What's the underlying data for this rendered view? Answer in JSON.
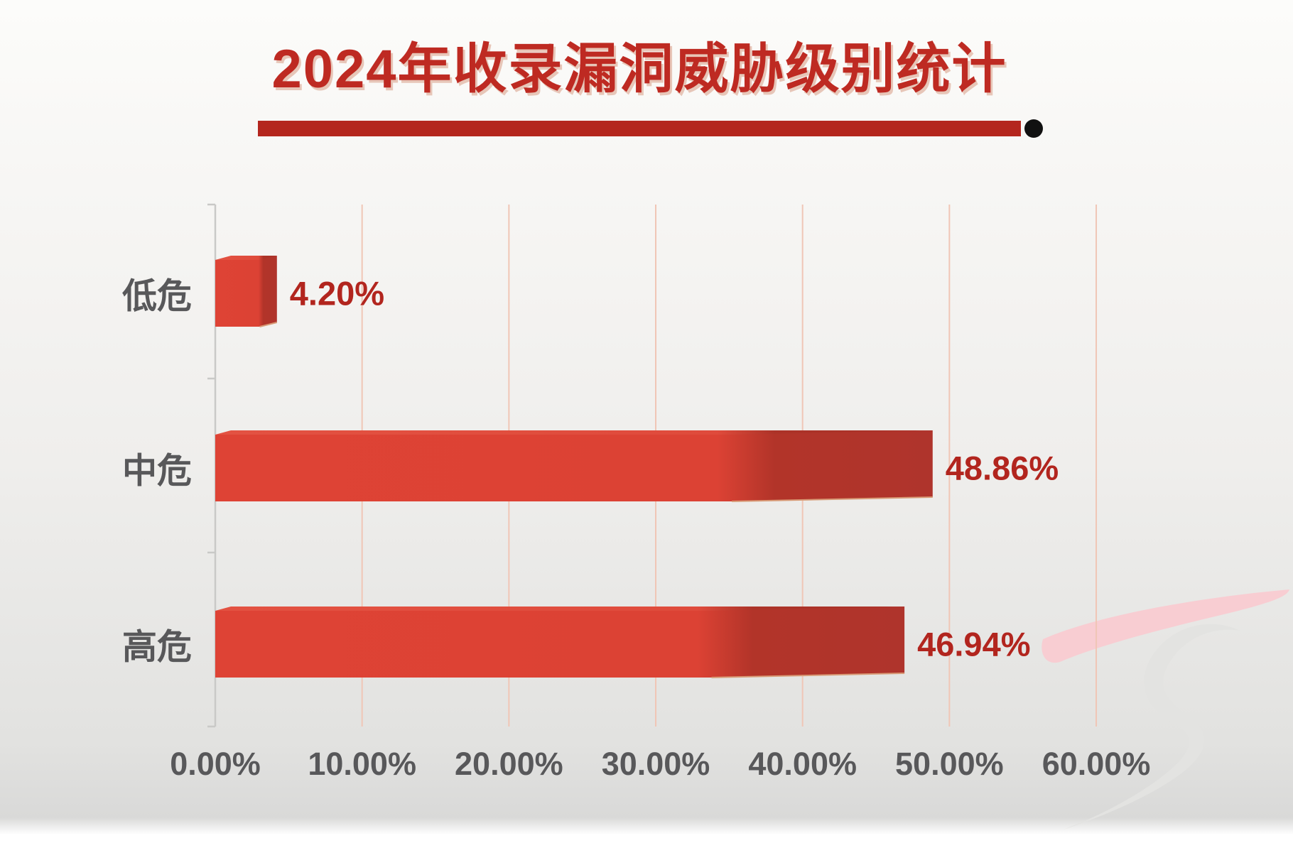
{
  "title": "2024年收录漏洞威胁级别统计",
  "chart_data": {
    "type": "bar",
    "orientation": "horizontal",
    "title": "2024年收录漏洞威胁级别统计",
    "categories": [
      "低危",
      "中危",
      "高危"
    ],
    "values": [
      4.2,
      48.86,
      46.94
    ],
    "value_labels": [
      "4.20%",
      "48.86%",
      "46.94%"
    ],
    "x_ticks": [
      "0.00%",
      "10.00%",
      "20.00%",
      "30.00%",
      "40.00%",
      "50.00%",
      "60.00%"
    ],
    "x_tick_values": [
      0,
      10,
      20,
      30,
      40,
      50,
      60
    ],
    "xlim": [
      0,
      60
    ],
    "xlabel": "",
    "ylabel": "",
    "grid": "vertical-gridlines",
    "legend": "none",
    "bar_style": "3d-red-blocks"
  },
  "colors": {
    "title_red": "#be2a22",
    "underline_red": "#b4261e",
    "value_label_red": "#b2251e",
    "bar_front": "#dc4336",
    "bar_side_dark": "#af342b",
    "bar_top_light": "#e35242",
    "gridline": "#f0c6b6",
    "axis_gray": "#c9c9c7",
    "text_gray": "#58585a",
    "dot_black": "#111111",
    "watermark_pink": "#f8cdd2",
    "watermark_gray": "#e3e3e1"
  }
}
